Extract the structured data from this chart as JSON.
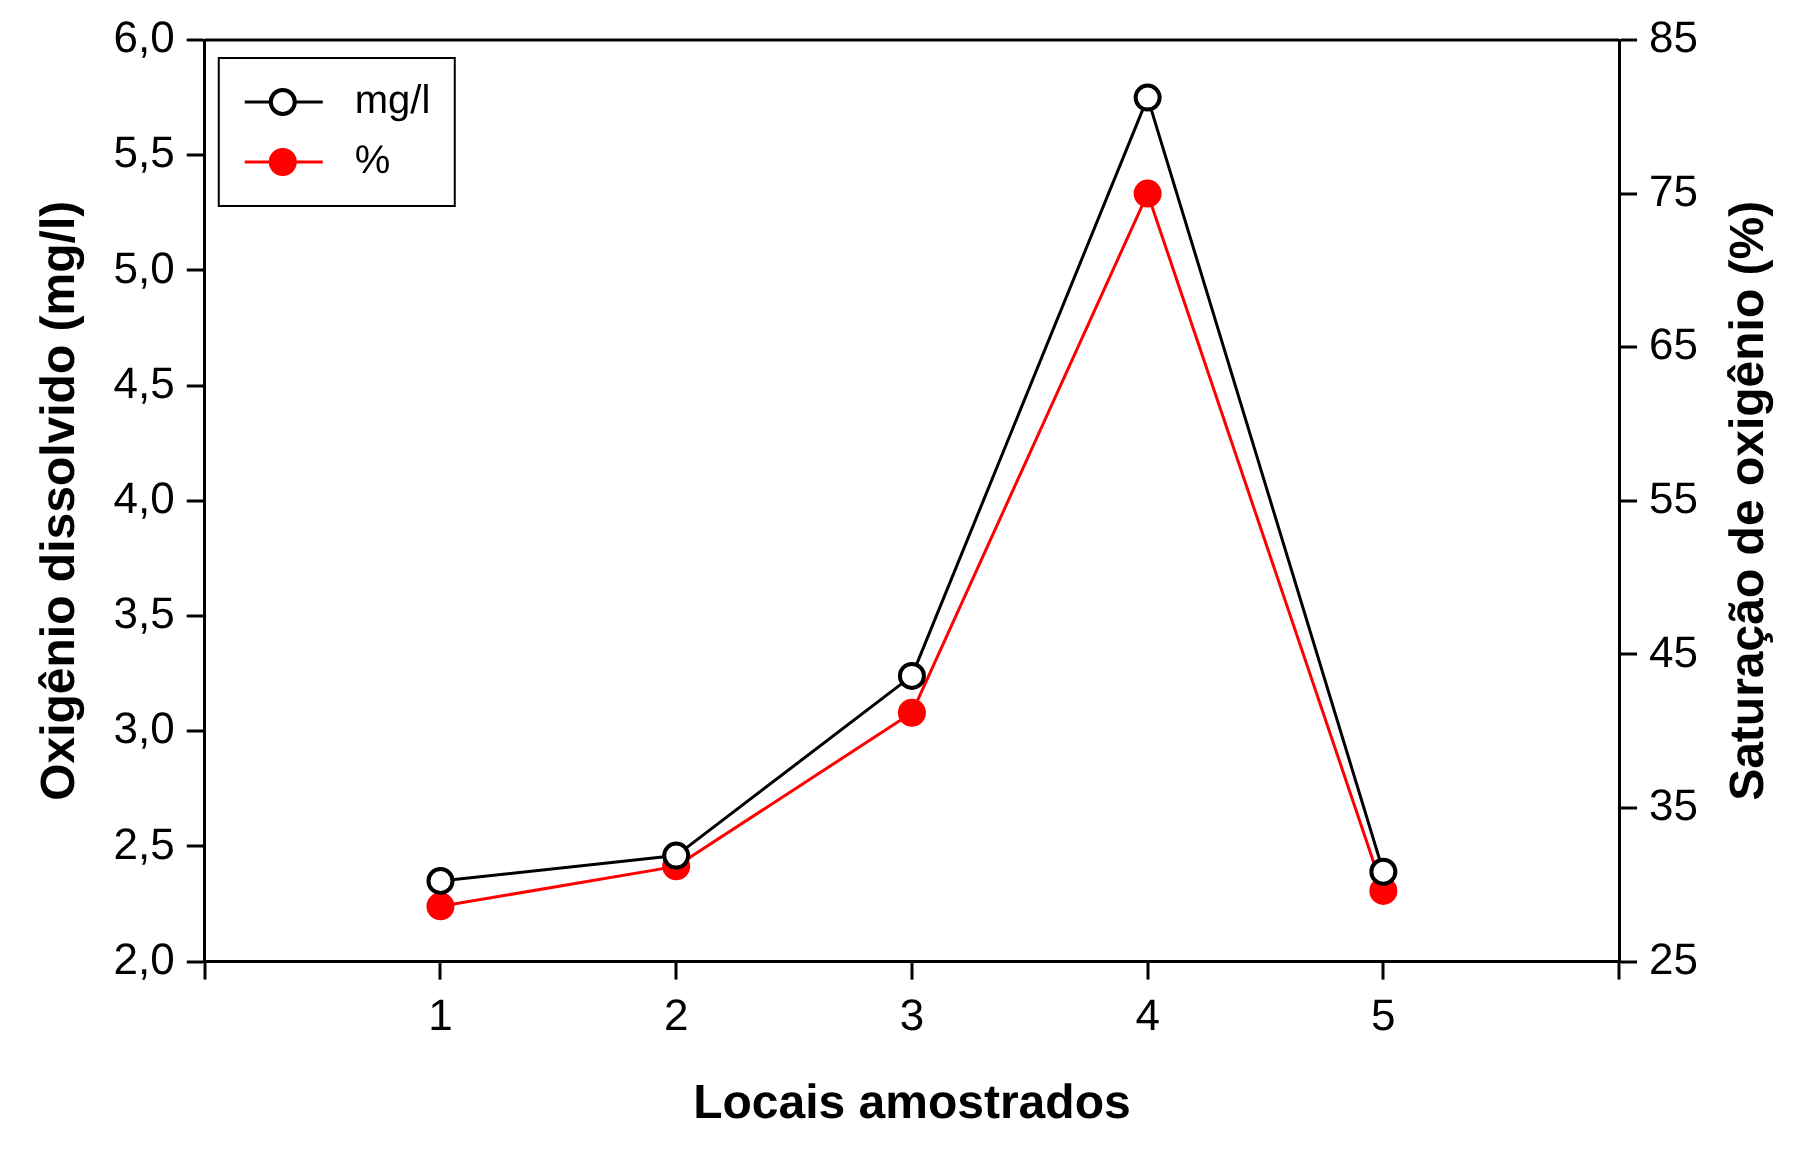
{
  "chart_data": {
    "type": "line",
    "xlabel": "Locais amostrados",
    "ylabel": "Oxigênio dissolvido (mg/l)",
    "y2label": "Saturação de oxigênio (%)",
    "x": [
      1,
      2,
      3,
      4,
      5
    ],
    "xlim": [
      0,
      6
    ],
    "xticks": [
      {
        "value": 0,
        "label": null
      },
      1,
      2,
      3,
      4,
      5,
      {
        "value": 6,
        "label": null
      }
    ],
    "ylim": [
      2,
      6
    ],
    "yticks": [
      {
        "value": 2,
        "label": "2,0"
      },
      {
        "value": 2.5,
        "label": "2,5"
      },
      {
        "value": 3,
        "label": "3,0"
      },
      {
        "value": 3.5,
        "label": "3,5"
      },
      {
        "value": 4,
        "label": "4,0"
      },
      {
        "value": 4.5,
        "label": "4,5"
      },
      {
        "value": 5,
        "label": "5,0"
      },
      {
        "value": 5.5,
        "label": "5,5"
      },
      {
        "value": 6,
        "label": "6,0"
      }
    ],
    "y2lim": [
      25,
      85
    ],
    "y2ticks": [
      25,
      35,
      45,
      55,
      65,
      75,
      85
    ],
    "series": [
      {
        "name": "mg/l",
        "color": "#000000",
        "values": [
          2.35,
          2.46,
          3.24,
          5.75,
          2.39
        ]
      },
      {
        "name": "%",
        "color": "#ff0000",
        "axis": "y2",
        "values": [
          28.6,
          31.2,
          41.2,
          75.0,
          29.6
        ]
      }
    ],
    "marker": "circle",
    "legend": "top left",
    "grid": false
  }
}
